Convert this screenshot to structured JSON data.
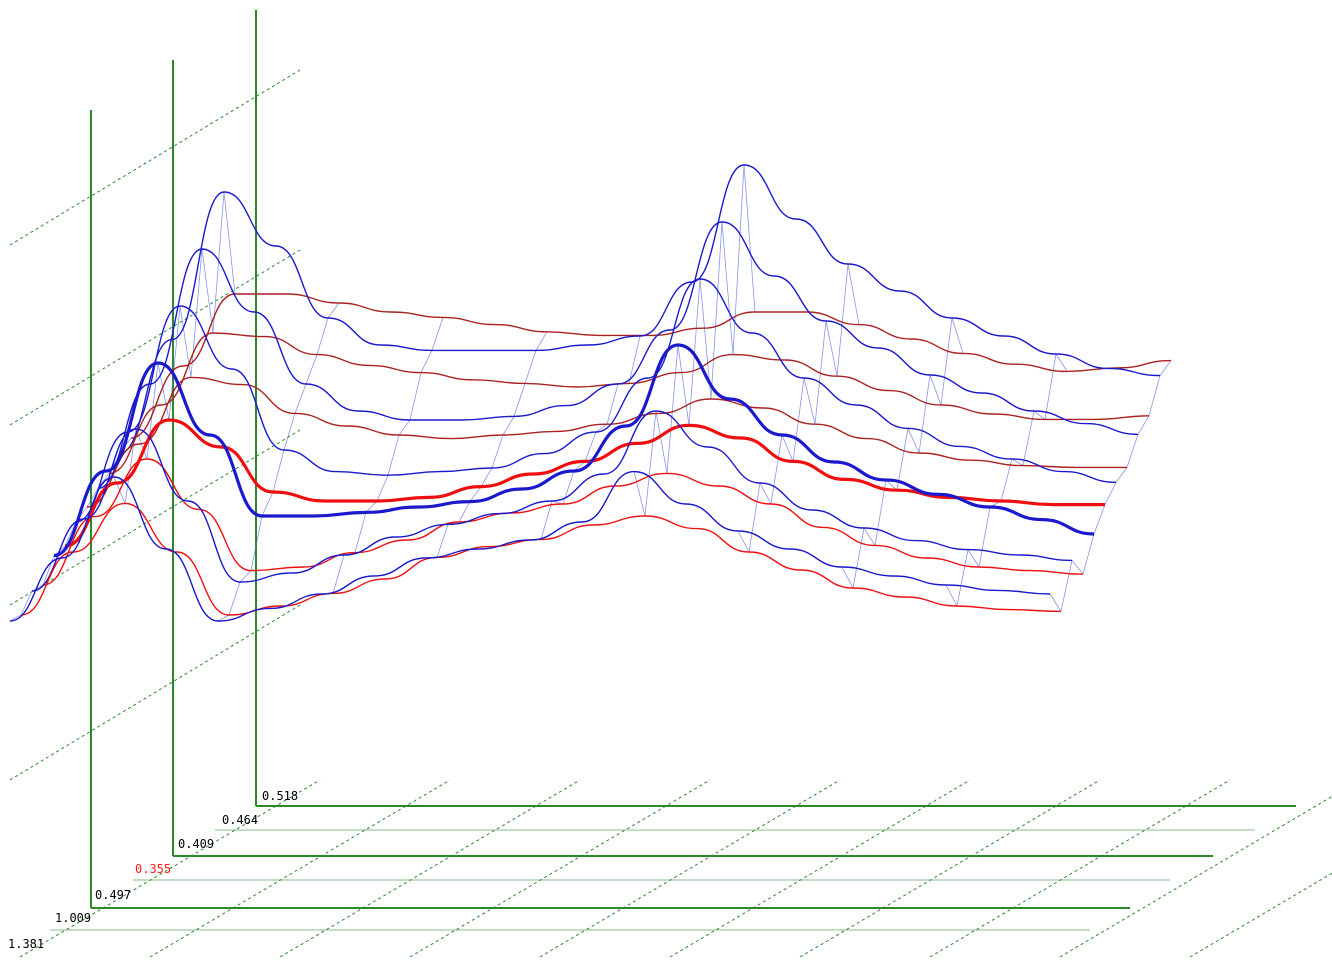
{
  "chart_data": {
    "type": "line",
    "title": "",
    "grid": true,
    "depth_labels": [
      {
        "text": "1.381",
        "color": "#000000"
      },
      {
        "text": "1.009",
        "color": "#000000"
      },
      {
        "text": "0.497",
        "color": "#000000"
      },
      {
        "text": "0.355",
        "color": "#ff2020"
      },
      {
        "text": "0.409",
        "color": "#000000"
      },
      {
        "text": "0.464",
        "color": "#000000"
      },
      {
        "text": "0.518",
        "color": "#000000"
      }
    ],
    "series_colors": {
      "blue": "#1a1acc",
      "red": "#ee1010",
      "dark_red": "#aa2222",
      "grid_green": "#2a8a2a",
      "grid_light": "#88bb88"
    },
    "x": [
      0,
      1,
      2,
      3,
      4,
      5,
      6,
      7,
      8,
      9,
      10,
      11,
      12,
      13,
      14,
      15,
      16,
      17,
      18,
      19,
      20
    ],
    "series": [
      {
        "color": "blue",
        "width": 1.4,
        "values": [
          0.05,
          0.4,
          0.85,
          0.45,
          0.05,
          0.12,
          0.2,
          0.3,
          0.4,
          0.45,
          0.5,
          0.6,
          0.88,
          0.7,
          0.55,
          0.45,
          0.35,
          0.3,
          0.25,
          0.22,
          0.2
        ]
      },
      {
        "color": "red",
        "width": 1.4,
        "values": [
          0.0,
          0.35,
          0.62,
          0.35,
          0.0,
          0.05,
          0.12,
          0.2,
          0.32,
          0.38,
          0.42,
          0.5,
          0.55,
          0.48,
          0.35,
          0.25,
          0.15,
          0.1,
          0.05,
          0.03,
          0.02
        ]
      },
      {
        "color": "blue",
        "width": 1.4,
        "values": [
          0.05,
          0.45,
          0.95,
          0.55,
          0.1,
          0.15,
          0.25,
          0.35,
          0.42,
          0.48,
          0.55,
          0.7,
          1.05,
          0.85,
          0.65,
          0.5,
          0.4,
          0.33,
          0.28,
          0.25,
          0.22
        ]
      },
      {
        "color": "red",
        "width": 1.4,
        "values": [
          0.0,
          0.38,
          0.7,
          0.42,
          0.08,
          0.1,
          0.18,
          0.25,
          0.35,
          0.4,
          0.45,
          0.55,
          0.62,
          0.55,
          0.45,
          0.32,
          0.22,
          0.15,
          0.1,
          0.08,
          0.06
        ]
      },
      {
        "color": "blue",
        "width": 3.2,
        "values": [
          0.08,
          0.55,
          1.15,
          0.75,
          0.3,
          0.3,
          0.32,
          0.35,
          0.38,
          0.45,
          0.55,
          0.8,
          1.25,
          0.95,
          0.75,
          0.6,
          0.5,
          0.42,
          0.35,
          0.28,
          0.2
        ]
      },
      {
        "color": "red",
        "width": 3.2,
        "values": [
          0.05,
          0.4,
          0.75,
          0.6,
          0.35,
          0.3,
          0.3,
          0.32,
          0.38,
          0.45,
          0.52,
          0.62,
          0.72,
          0.65,
          0.52,
          0.42,
          0.36,
          0.32,
          0.3,
          0.28,
          0.28
        ]
      },
      {
        "color": "blue",
        "width": 1.4,
        "values": [
          0.1,
          0.6,
          1.3,
          0.95,
          0.5,
          0.38,
          0.36,
          0.38,
          0.4,
          0.48,
          0.6,
          0.9,
          1.45,
          1.15,
          0.9,
          0.75,
          0.62,
          0.52,
          0.45,
          0.38,
          0.32
        ]
      },
      {
        "color": "dark_red",
        "width": 1.4,
        "values": [
          0.1,
          0.45,
          0.82,
          0.78,
          0.62,
          0.55,
          0.5,
          0.48,
          0.5,
          0.52,
          0.56,
          0.62,
          0.7,
          0.65,
          0.56,
          0.48,
          0.4,
          0.36,
          0.33,
          0.32,
          0.32
        ]
      },
      {
        "color": "blue",
        "width": 1.4,
        "values": [
          0.12,
          0.7,
          1.45,
          1.1,
          0.7,
          0.55,
          0.5,
          0.5,
          0.52,
          0.58,
          0.7,
          1.0,
          1.6,
          1.3,
          1.05,
          0.9,
          0.75,
          0.65,
          0.55,
          0.48,
          0.42
        ]
      },
      {
        "color": "dark_red",
        "width": 1.4,
        "values": [
          0.12,
          0.5,
          0.9,
          0.88,
          0.78,
          0.72,
          0.68,
          0.64,
          0.62,
          0.6,
          0.62,
          0.68,
          0.78,
          0.75,
          0.66,
          0.58,
          0.5,
          0.45,
          0.42,
          0.42,
          0.44
        ]
      },
      {
        "color": "blue",
        "width": 1.4,
        "values": [
          0.15,
          0.78,
          1.6,
          1.3,
          0.9,
          0.75,
          0.72,
          0.72,
          0.72,
          0.75,
          0.8,
          1.1,
          1.75,
          1.45,
          1.2,
          1.05,
          0.9,
          0.8,
          0.7,
          0.62,
          0.58
        ]
      },
      {
        "color": "dark_red",
        "width": 1.4,
        "values": [
          0.15,
          0.55,
          0.95,
          0.95,
          0.9,
          0.85,
          0.82,
          0.78,
          0.74,
          0.72,
          0.72,
          0.76,
          0.85,
          0.85,
          0.78,
          0.7,
          0.62,
          0.56,
          0.52,
          0.54,
          0.58
        ]
      }
    ]
  }
}
